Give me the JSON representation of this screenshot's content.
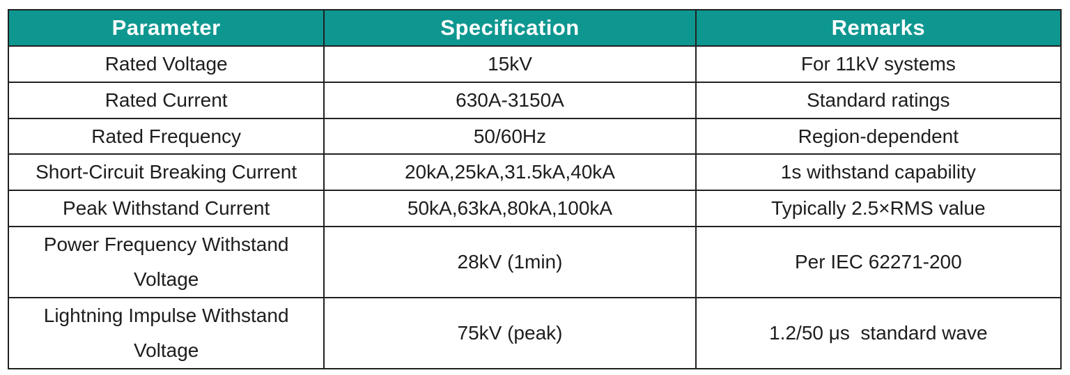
{
  "colors": {
    "header_background": "#0E9790",
    "header_text": "#FFFFFF",
    "body_text": "#1D1D1D",
    "grid_border": "#212121",
    "page_background": "#FFFFFF"
  },
  "table": {
    "headers": [
      "Parameter",
      "Specification",
      "Remarks"
    ],
    "rows": [
      [
        "Rated Voltage",
        "15kV",
        "For 11kV systems"
      ],
      [
        "Rated Current",
        "630A-3150A",
        "Standard ratings"
      ],
      [
        "Rated Frequency",
        "50/60Hz",
        "Region-dependent"
      ],
      [
        "Short-Circuit Breaking Current",
        "20kA,25kA,31.5kA,40kA",
        "1s withstand capability"
      ],
      [
        "Peak Withstand Current",
        "50kA,63kA,80kA,100kA",
        "Typically 2.5×RMS value"
      ],
      [
        "Power Frequency Withstand Voltage",
        "28kV (1min)",
        "Per IEC 62271-200"
      ],
      [
        "Lightning Impulse Withstand Voltage",
        "75kV (peak)",
        "1.2/50 μs  standard wave"
      ]
    ]
  },
  "chart_data": {
    "type": "table",
    "title": "",
    "columns": [
      "Parameter",
      "Specification",
      "Remarks"
    ],
    "rows": [
      {
        "parameter": "Rated Voltage",
        "specification": "15kV",
        "remarks": "For 11kV systems"
      },
      {
        "parameter": "Rated Current",
        "specification": "630A-3150A",
        "remarks": "Standard ratings"
      },
      {
        "parameter": "Rated Frequency",
        "specification": "50/60Hz",
        "remarks": "Region-dependent"
      },
      {
        "parameter": "Short-Circuit Breaking Current",
        "specification": "20kA,25kA,31.5kA,40kA",
        "remarks": "1s withstand capability"
      },
      {
        "parameter": "Peak Withstand Current",
        "specification": "50kA,63kA,80kA,100kA",
        "remarks": "Typically 2.5×RMS value"
      },
      {
        "parameter": "Power Frequency Withstand Voltage",
        "specification": "28kV (1min)",
        "remarks": "Per IEC 62271-200"
      },
      {
        "parameter": "Lightning Impulse Withstand Voltage",
        "specification": "75kV (peak)",
        "remarks": "1.2/50 μs  standard wave"
      }
    ]
  }
}
